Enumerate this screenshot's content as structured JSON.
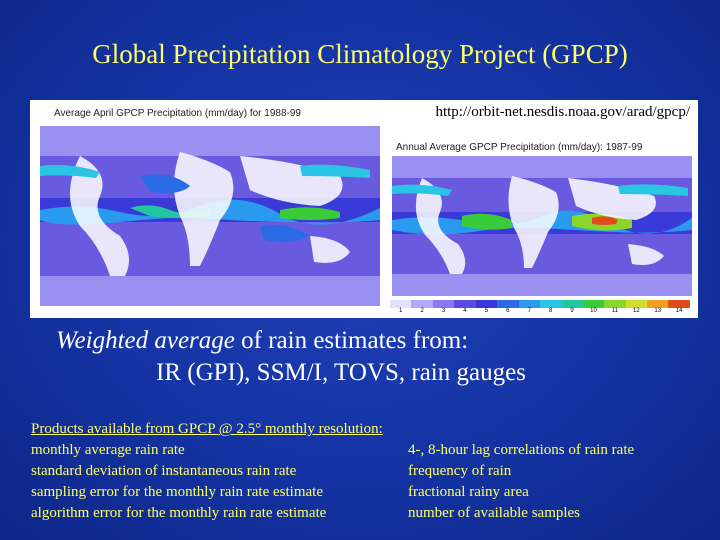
{
  "slide": {
    "title": "Global Precipitation Climatology Project (GPCP)",
    "url": "http://orbit-net.nesdis.noaa.gov/arad/gpcp/",
    "left_map_title": "Average April GPCP Precipitation (mm/day) for 1988-99",
    "right_map_title": "Annual Average GPCP Precipitation (mm/day): 1987-99",
    "colorbar_labels": [
      "1",
      "2",
      "3",
      "4",
      "5",
      "6",
      "7",
      "8",
      "9",
      "10",
      "11",
      "12",
      "13",
      "14"
    ],
    "colorbar_colors": [
      "#e0e0ff",
      "#b0a8f8",
      "#8a78f0",
      "#5a4ae0",
      "#3a3adc",
      "#2a6ae6",
      "#2a9aee",
      "#2ac4e4",
      "#22c7a0",
      "#3acb3a",
      "#8ad62a",
      "#d0e02a",
      "#f0a020",
      "#e04a1a"
    ],
    "weighted_italic": "Weighted average",
    "weighted_rest": " of rain estimates from:",
    "sources": "IR (GPI), SSM/I, TOVS, rain gauges",
    "products_header": "Products available from GPCP @ 2.5° monthly resolution:",
    "products_left": [
      "monthly average rain rate",
      "standard deviation of instantaneous rain rate",
      "sampling error for the monthly rain rate estimate",
      "algorithm error for the monthly rain rate estimate"
    ],
    "products_right": [
      "4-, 8-hour lag correlations of rain rate",
      "frequency of rain",
      "fractional rainy area",
      "number of available samples"
    ]
  }
}
